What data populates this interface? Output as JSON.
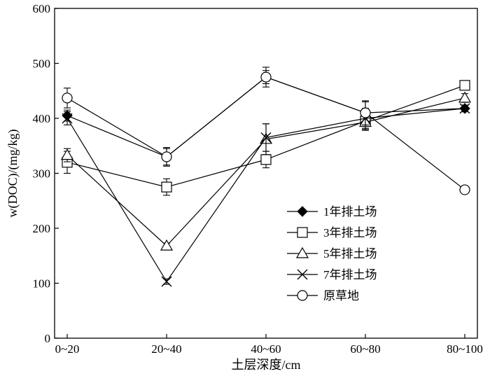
{
  "chart_data": {
    "type": "line",
    "categories": [
      "0~20",
      "20~40",
      "40~60",
      "60~80",
      "80~100"
    ],
    "xlabel": "土层深度/cm",
    "ylabel": "w(DOC)/(mg/kg)",
    "ylim": [
      0,
      600
    ],
    "yticks": [
      0,
      100,
      200,
      300,
      400,
      500,
      600
    ],
    "grid": false,
    "legend_position": "bottom-right",
    "series": [
      {
        "name": "1年排土场",
        "marker": "filled-diamond",
        "values": [
          405,
          330,
          475,
          410,
          418
        ],
        "errors": [
          10,
          15,
          12,
          20,
          6
        ]
      },
      {
        "name": "3年排土场",
        "marker": "open-square",
        "values": [
          320,
          275,
          325,
          395,
          460
        ],
        "errors": [
          20,
          15,
          15,
          15,
          8
        ]
      },
      {
        "name": "5年排土场",
        "marker": "open-triangle",
        "values": [
          333,
          168,
          362,
          393,
          437
        ],
        "errors": [
          12,
          5,
          28,
          15,
          8
        ]
      },
      {
        "name": "7年排土场",
        "marker": "x-cross",
        "values": [
          400,
          103,
          365,
          400,
          418
        ],
        "errors": [
          12,
          5,
          25,
          18,
          6
        ]
      },
      {
        "name": "原草地",
        "marker": "open-circle",
        "values": [
          437,
          330,
          475,
          410,
          270
        ],
        "errors": [
          18,
          17,
          18,
          22,
          6
        ]
      }
    ]
  }
}
